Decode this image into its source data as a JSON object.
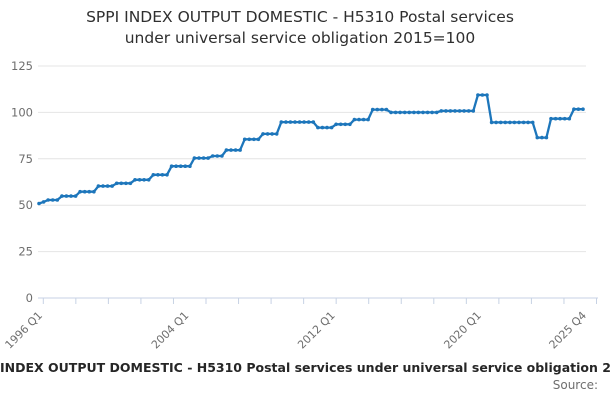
{
  "header": {
    "title_line1": "SPPI INDEX OUTPUT DOMESTIC - H5310 Postal services",
    "title_line2": "under universal service obligation 2015=100"
  },
  "caption": {
    "text": "INDEX OUTPUT DOMESTIC - H5310 Postal services under universal service obligation 2",
    "source_label": "Source:"
  },
  "colors": {
    "line": "#1d76bb",
    "gridline": "#e4e4e4",
    "axis": "#c7d2e4",
    "tick_label": "#6e6e6e"
  },
  "chart_data": {
    "type": "line",
    "title": "SPPI INDEX OUTPUT DOMESTIC - H5310 Postal services under universal service obligation 2015=100",
    "xlabel": "",
    "ylabel": "",
    "frequency": "quarterly",
    "x_start": "1996 Q1",
    "x_end": "2025 Q4",
    "num_points": 120,
    "legend": "none",
    "grid": "horizontal",
    "markers": true,
    "y_axis": {
      "ticks": [
        0,
        25,
        50,
        75,
        100,
        125
      ],
      "range": [
        0,
        130
      ]
    },
    "x_axis": {
      "minor_tick_count": 18,
      "tick_labels": [
        {
          "label": "1996 Q1",
          "index": 0
        },
        {
          "label": "2004 Q1",
          "index": 32
        },
        {
          "label": "2012 Q1",
          "index": 64
        },
        {
          "label": "2020 Q1",
          "index": 96
        },
        {
          "label": "2025 Q4",
          "index": 119
        }
      ]
    },
    "series": [
      {
        "name": "SPPI INDEX OUTPUT DOMESTIC - H5310 Postal services under universal service obligation 2015=100",
        "values": [
          50.9,
          51.8,
          52.8,
          52.8,
          52.8,
          54.9,
          54.9,
          54.9,
          54.9,
          57.3,
          57.3,
          57.3,
          57.3,
          60.3,
          60.3,
          60.3,
          60.3,
          61.8,
          61.8,
          61.8,
          61.8,
          63.7,
          63.7,
          63.7,
          63.7,
          66.4,
          66.4,
          66.4,
          66.4,
          71.0,
          71.0,
          71.0,
          71.0,
          71.0,
          75.4,
          75.4,
          75.4,
          75.4,
          76.5,
          76.5,
          76.5,
          79.7,
          79.7,
          79.7,
          79.7,
          85.5,
          85.5,
          85.5,
          85.5,
          88.4,
          88.4,
          88.4,
          88.4,
          94.8,
          94.8,
          94.8,
          94.8,
          94.8,
          94.8,
          94.8,
          94.8,
          91.8,
          91.8,
          91.8,
          91.8,
          93.6,
          93.6,
          93.6,
          93.6,
          96.1,
          96.1,
          96.1,
          96.1,
          101.5,
          101.5,
          101.5,
          101.5,
          100.0,
          100.0,
          100.0,
          100.0,
          100.0,
          100.0,
          100.0,
          100.0,
          100.0,
          100.0,
          100.0,
          100.8,
          100.8,
          100.8,
          100.8,
          100.8,
          100.8,
          100.8,
          100.8,
          109.4,
          109.4,
          109.4,
          94.6,
          94.6,
          94.6,
          94.6,
          94.6,
          94.6,
          94.6,
          94.6,
          94.6,
          94.6,
          86.4,
          86.4,
          86.4,
          96.6,
          96.6,
          96.6,
          96.6,
          96.6,
          101.7,
          101.7,
          101.7
        ]
      }
    ]
  }
}
